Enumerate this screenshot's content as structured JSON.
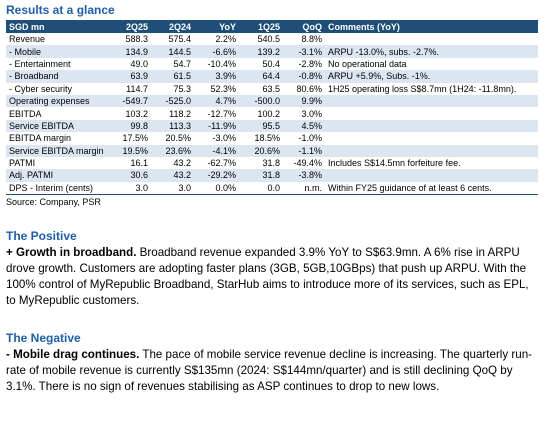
{
  "header": {
    "title": "Results at a glance"
  },
  "table": {
    "columns": [
      "SGD mn",
      "2Q25",
      "2Q24",
      "YoY",
      "1Q25",
      "QoQ",
      "Comments (YoY)"
    ],
    "rows": [
      [
        "Revenue",
        "588.3",
        "575.4",
        "2.2%",
        "540.5",
        "8.8%"
      ],
      [
        "- Mobile",
        "134.9",
        "144.5",
        "-6.6%",
        "139.2",
        "-3.1%",
        "ARPU -13.0%, subs. -2.7%."
      ],
      [
        "- Entertainment",
        "49.0",
        "54.7",
        "-10.4%",
        "50.4",
        "-2.8%",
        "No operational data"
      ],
      [
        "- Broadband",
        "63.9",
        "61.5",
        "3.9%",
        "64.4",
        "-0.8%",
        "ARPU +5.9%, Subs. -1%."
      ],
      [
        "- Cyber security",
        "114.7",
        "75.3",
        "52.3%",
        "63.5",
        "80.6%",
        "1H25 operating loss S$8.7mn (1H24: -11.8mn)."
      ],
      [
        "Operating expenses",
        "-549.7",
        "-525.0",
        "4.7%",
        "-500.0",
        "9.9%"
      ],
      [
        "EBITDA",
        "103.2",
        "118.2",
        "-12.7%",
        "100.2",
        "3.0%"
      ],
      [
        "Service EBITDA",
        "99.8",
        "113.3",
        "-11.9%",
        "95.5",
        "4.5%"
      ],
      [
        "EBITDA margin",
        "17.5%",
        "20.5%",
        "-3.0%",
        "18.5%",
        "-1.0%"
      ],
      [
        "Service EBITDA margin",
        "19.5%",
        "23.6%",
        "-4.1%",
        "20.6%",
        "-1.1%"
      ],
      [
        "PATMI",
        "16.1",
        "43.2",
        "-62.7%",
        "31.8",
        "-49.4%",
        "Includes S$14.5mn forfeiture fee."
      ],
      [
        "Adj. PATMI",
        "30.6",
        "43.2",
        "-29.2%",
        "31.8",
        "-3.8%"
      ],
      [
        "DPS - Interim (cents)",
        "3.0",
        "3.0",
        "0.0%",
        "0.0",
        "n.m.",
        "Within FY25 guidance of at least 6 cents."
      ]
    ],
    "source": "Source: Company, PSR"
  },
  "sections": [
    {
      "heading": "The Positive",
      "lead": "+ Growth in broadband.",
      "text": "Broadband revenue expanded 3.9% YoY to S$63.9mn. A 6% rise in ARPU drove growth. Customers are adopting faster plans (3GB, 5GB,10GBps) that push up ARPU. With the 100% control of MyRepublic Broadband, StarHub aims to introduce more of its services, such as EPL, to MyRepublic customers."
    },
    {
      "heading": "The Negative",
      "lead": "- Mobile drag continues.",
      "text": "The pace of mobile service revenue decline is increasing. The quarterly run-rate of mobile revenue is currently S$135mn (2024: S$144mn/quarter) and is still declining QoQ by 3.1%. There is no sign of revenues stabilising as ASP continues to drop to new lows."
    }
  ]
}
